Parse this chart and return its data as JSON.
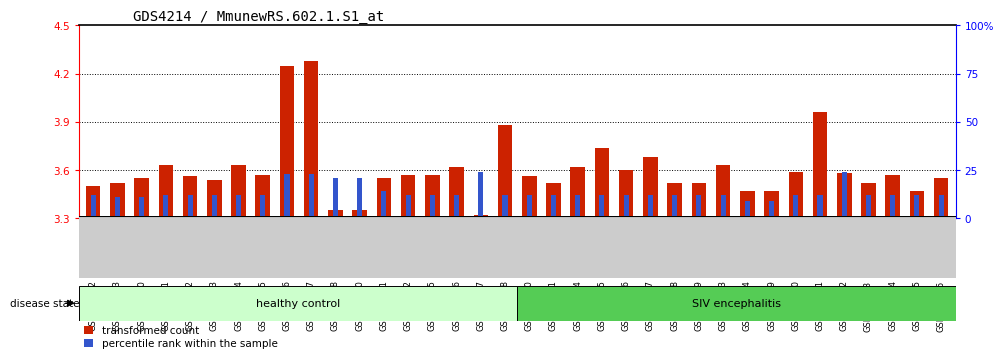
{
  "title": "GDS4214 / MmunewRS.602.1.S1_at",
  "samples": [
    "GSM347802",
    "GSM347803",
    "GSM347810",
    "GSM347811",
    "GSM347812",
    "GSM347813",
    "GSM347814",
    "GSM347815",
    "GSM347816",
    "GSM347817",
    "GSM347818",
    "GSM347820",
    "GSM347821",
    "GSM347822",
    "GSM347825",
    "GSM347826",
    "GSM347827",
    "GSM347828",
    "GSM347800",
    "GSM347801",
    "GSM347804",
    "GSM347805",
    "GSM347806",
    "GSM347807",
    "GSM347808",
    "GSM347809",
    "GSM347823",
    "GSM347824",
    "GSM347829",
    "GSM347830",
    "GSM347831",
    "GSM347832",
    "GSM347833",
    "GSM347834",
    "GSM347835",
    "GSM347836"
  ],
  "red_values": [
    3.5,
    3.52,
    3.55,
    3.63,
    3.56,
    3.54,
    3.63,
    3.57,
    4.25,
    4.28,
    3.35,
    3.35,
    3.55,
    3.57,
    3.57,
    3.62,
    3.32,
    3.88,
    3.56,
    3.52,
    3.62,
    3.74,
    3.6,
    3.68,
    3.52,
    3.52,
    3.63,
    3.47,
    3.47,
    3.59,
    3.96,
    3.58,
    3.52,
    3.57,
    3.47,
    3.55
  ],
  "blue_percent": [
    12,
    11,
    11,
    12,
    12,
    12,
    12,
    12,
    23,
    23,
    21,
    21,
    14,
    12,
    12,
    12,
    24,
    12,
    12,
    12,
    12,
    12,
    12,
    12,
    12,
    12,
    12,
    9,
    9,
    12,
    12,
    24,
    12,
    12,
    12,
    12
  ],
  "healthy_count": 18,
  "siv_count": 18,
  "ylim_left": [
    3.3,
    4.5
  ],
  "ylim_right": [
    0,
    100
  ],
  "yticks_left": [
    3.3,
    3.6,
    3.9,
    4.2,
    4.5
  ],
  "yticks_right": [
    0,
    25,
    50,
    75,
    100
  ],
  "bar_color_red": "#cc2200",
  "bar_color_blue": "#3355cc",
  "healthy_bg": "#ccffcc",
  "siv_bg": "#55cc55",
  "xticklabel_bg": "#cccccc",
  "legend_red_label": "transformed count",
  "legend_blue_label": "percentile rank within the sample",
  "disease_state_label": "disease state",
  "healthy_label": "healthy control",
  "siv_label": "SIV encephalitis",
  "title_fontsize": 10,
  "tick_fontsize": 7.5,
  "base": 3.3
}
